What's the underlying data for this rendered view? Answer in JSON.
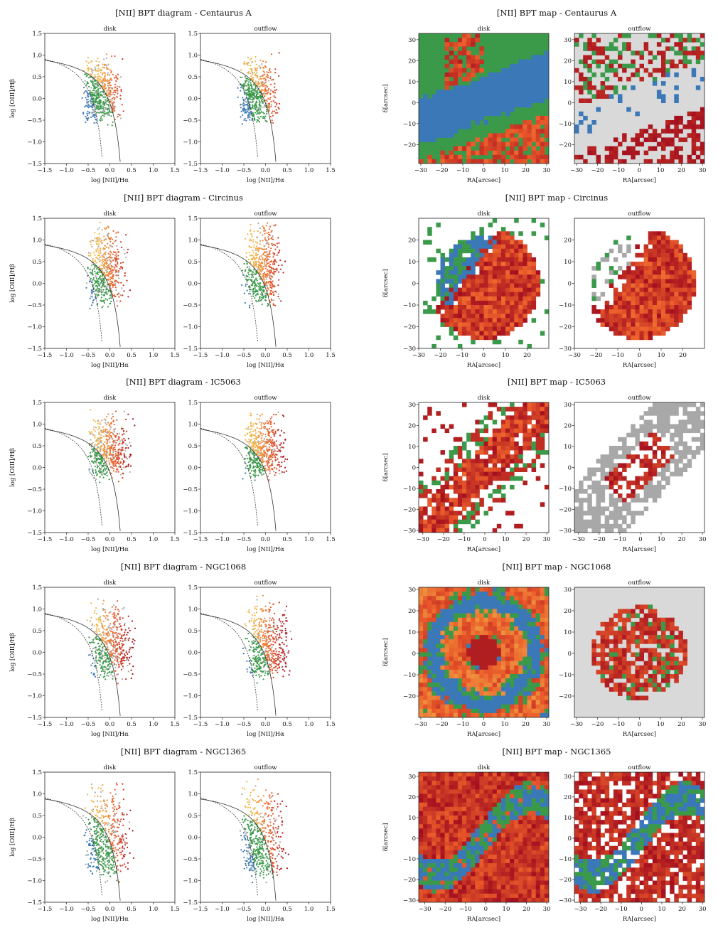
{
  "figure": {
    "diagram_title_prefix": "[NII] BPT diagram - ",
    "map_title_prefix": "[NII] BPT map - ",
    "panel_titles": [
      "disk",
      "outflow"
    ],
    "bpt_xlabel": "log [NII]/Hα",
    "bpt_ylabel": "log [OIII]/Hβ",
    "map_xlabel": "RA[arcsec]",
    "map_ylabel": "δ[arcsec]"
  },
  "colors": {
    "sf": "#3b78b8",
    "composite": "#3a9a4a",
    "agn_low": "#f2b64a",
    "agn_mid": "#ea5a2a",
    "agn_high": "#a30f1f",
    "unclassified": "#a8a8a8",
    "background_map": "#d9d9d9"
  },
  "chart_data": [
    {
      "type": "scatter",
      "galaxy": "Centaurus A",
      "title": "[NII] BPT diagram - Centaurus A",
      "panels": [
        "disk",
        "outflow"
      ],
      "xlabel": "log [NII]/Hα",
      "ylabel": "log [OIII]/Hβ",
      "xlim": [
        -1.5,
        1.5
      ],
      "ylim": [
        -1.5,
        1.5
      ],
      "xticks": [
        -1.5,
        -1.0,
        -0.5,
        0.0,
        0.5,
        1.0,
        1.5
      ],
      "yticks": [
        -1.5,
        -1.0,
        -0.5,
        0.0,
        0.5,
        1.0,
        1.5
      ],
      "curves": [
        "Kauffmann 2003 (dashed)",
        "Kewley 2001 (solid)"
      ],
      "cloud": {
        "x_range": [
          -0.7,
          0.3
        ],
        "y_range": [
          -0.9,
          1.0
        ]
      }
    },
    {
      "type": "heatmap",
      "galaxy": "Centaurus A",
      "title": "[NII] BPT map - Centaurus A",
      "panels": [
        "disk",
        "outflow"
      ],
      "xlabel": "RA[arcsec]",
      "ylabel": "δ[arcsec]",
      "xlim": [
        -31,
        31
      ],
      "ylim": [
        -29,
        33
      ],
      "xticks": [
        -30,
        -20,
        -10,
        0,
        10,
        20,
        30
      ],
      "yticks": [
        -20,
        -10,
        0,
        10,
        20,
        30
      ],
      "structure": "band",
      "angle": 20,
      "outflow_background": true
    },
    {
      "type": "scatter",
      "galaxy": "Circinus",
      "title": "[NII] BPT diagram - Circinus",
      "panels": [
        "disk",
        "outflow"
      ],
      "xlabel": "log [NII]/Hα",
      "ylabel": "log [OIII]/Hβ",
      "xlim": [
        -1.5,
        1.5
      ],
      "ylim": [
        -1.5,
        1.5
      ],
      "xticks": [
        -1.5,
        -1.0,
        -0.5,
        0.0,
        0.5,
        1.0,
        1.5
      ],
      "yticks": [
        -1.5,
        -1.0,
        -0.5,
        0.0,
        0.5,
        1.0,
        1.5
      ],
      "curves": [
        "Kauffmann 2003 (dashed)",
        "Kewley 2001 (solid)"
      ],
      "cloud": {
        "x_range": [
          -0.6,
          0.4
        ],
        "y_range": [
          -1.0,
          1.45
        ]
      }
    },
    {
      "type": "heatmap",
      "galaxy": "Circinus",
      "title": "[NII] BPT map - Circinus",
      "panels": [
        "disk",
        "outflow"
      ],
      "xlabel": "RA[arcsec]",
      "ylabel": "δ[arcsec]",
      "xlim": [
        -30,
        30
      ],
      "ylim": [
        -30,
        30
      ],
      "xticks": [
        -30,
        -20,
        -10,
        0,
        10,
        20
      ],
      "yticks": [
        -30,
        -20,
        -10,
        0,
        10,
        20
      ],
      "structure": "cone",
      "angle": -35,
      "outflow_background": false
    },
    {
      "type": "scatter",
      "galaxy": "IC5063",
      "title": "[NII] BPT diagram - IC5063",
      "panels": [
        "disk",
        "outflow"
      ],
      "xlabel": "log [NII]/Hα",
      "ylabel": "log [OIII]/Hβ",
      "xlim": [
        -1.5,
        1.5
      ],
      "ylim": [
        -1.5,
        1.5
      ],
      "xticks": [
        -1.5,
        -1.0,
        -0.5,
        0.0,
        0.5,
        1.0,
        1.5
      ],
      "yticks": [
        -1.5,
        -1.0,
        -0.5,
        0.0,
        0.5,
        1.0,
        1.5
      ],
      "curves": [
        "Kauffmann 2003 (dashed)",
        "Kewley 2001 (solid)"
      ],
      "cloud": {
        "x_range": [
          -0.6,
          0.5
        ],
        "y_range": [
          -0.6,
          1.3
        ]
      }
    },
    {
      "type": "heatmap",
      "galaxy": "IC5063",
      "title": "[NII] BPT map - IC5063",
      "panels": [
        "disk",
        "outflow"
      ],
      "xlabel": "RA[arcsec]",
      "ylabel": "δ[arcsec]",
      "xlim": [
        -32,
        31
      ],
      "ylim": [
        -31,
        31
      ],
      "xticks": [
        -30,
        -20,
        -10,
        0,
        10,
        20,
        30
      ],
      "yticks": [
        -30,
        -20,
        -10,
        0,
        10,
        20,
        30
      ],
      "structure": "diagonal",
      "angle": 45,
      "outflow_background": false
    },
    {
      "type": "scatter",
      "galaxy": "NGC1068",
      "title": "[NII] BPT diagram - NGC1068",
      "panels": [
        "disk",
        "outflow"
      ],
      "xlabel": "log [NII]/Hα",
      "ylabel": "log [OIII]/Hβ",
      "xlim": [
        -1.5,
        1.5
      ],
      "ylim": [
        -1.5,
        1.5
      ],
      "xticks": [
        -1.5,
        -1.0,
        -0.5,
        0.0,
        0.5,
        1.0,
        1.5
      ],
      "yticks": [
        -1.5,
        -1.0,
        -0.5,
        0.0,
        0.5,
        1.0,
        1.5
      ],
      "curves": [
        "Kauffmann 2003 (dashed)",
        "Kewley 2001 (solid)"
      ],
      "cloud": {
        "x_range": [
          -0.6,
          0.6
        ],
        "y_range": [
          -1.05,
          1.25
        ]
      }
    },
    {
      "type": "heatmap",
      "galaxy": "NGC1068",
      "title": "[NII] BPT map - NGC1068",
      "panels": [
        "disk",
        "outflow"
      ],
      "xlabel": "RA[arcsec]",
      "ylabel": "δ[arcsec]",
      "xlim": [
        -31,
        31
      ],
      "ylim": [
        -30,
        31
      ],
      "xticks": [
        -30,
        -20,
        -10,
        0,
        10,
        20,
        30
      ],
      "yticks": [
        -20,
        -10,
        0,
        10,
        20,
        30
      ],
      "structure": "ring",
      "angle": 0,
      "outflow_background": true
    },
    {
      "type": "scatter",
      "galaxy": "NGC1365",
      "title": "[NII] BPT diagram - NGC1365",
      "panels": [
        "disk",
        "outflow"
      ],
      "xlabel": "log [NII]/Hα",
      "ylabel": "log [OIII]/Hβ",
      "xlim": [
        -1.5,
        1.5
      ],
      "ylim": [
        -1.5,
        1.5
      ],
      "xticks": [
        -1.5,
        -1.0,
        -0.5,
        0.0,
        0.5,
        1.0,
        1.5
      ],
      "yticks": [
        -1.5,
        -1.0,
        -0.5,
        0.0,
        0.5,
        1.0,
        1.5
      ],
      "curves": [
        "Kauffmann 2003 (dashed)",
        "Kewley 2001 (solid)"
      ],
      "cloud": {
        "x_range": [
          -0.7,
          0.5
        ],
        "y_range": [
          -1.5,
          1.3
        ]
      }
    },
    {
      "type": "heatmap",
      "galaxy": "NGC1365",
      "title": "[NII] BPT map - NGC1365",
      "panels": [
        "disk",
        "outflow"
      ],
      "xlabel": "RA[arcsec]",
      "ylabel": "δ[arcsec]",
      "xlim": [
        -33,
        31
      ],
      "ylim": [
        -31,
        32
      ],
      "xticks": [
        -30,
        -20,
        -10,
        0,
        10,
        20,
        30
      ],
      "yticks": [
        -30,
        -20,
        -10,
        0,
        10,
        20,
        30
      ],
      "structure": "bar",
      "angle": 0,
      "outflow_background": false
    }
  ]
}
